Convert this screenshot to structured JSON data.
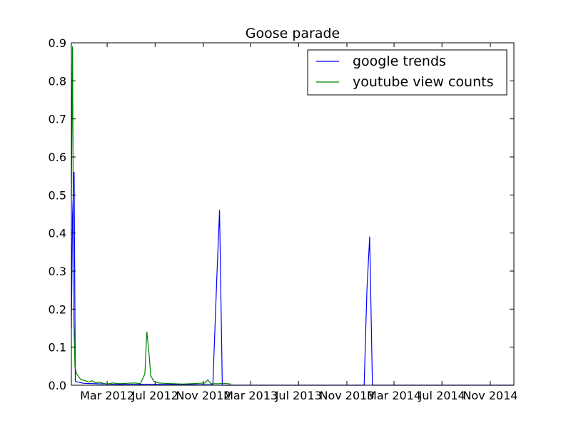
{
  "chart_data": {
    "type": "line",
    "title": "Goose parade",
    "xlabel": "",
    "ylabel": "",
    "x_axis_type": "date",
    "xlim": [
      "2011-12-01",
      "2014-12-31"
    ],
    "ylim": [
      0,
      0.9
    ],
    "x_ticks": [
      {
        "date": "2012-03-01",
        "label": "Mar 2012"
      },
      {
        "date": "2012-07-01",
        "label": "Jul 2012"
      },
      {
        "date": "2012-11-01",
        "label": "Nov 2012"
      },
      {
        "date": "2013-03-01",
        "label": "Mar 2013"
      },
      {
        "date": "2013-07-01",
        "label": "Jul 2013"
      },
      {
        "date": "2013-11-01",
        "label": "Nov 2013"
      },
      {
        "date": "2014-03-01",
        "label": "Mar 2014"
      },
      {
        "date": "2014-07-01",
        "label": "Jul 2014"
      },
      {
        "date": "2014-11-01",
        "label": "Nov 2014"
      }
    ],
    "y_ticks": [
      {
        "value": 0.0,
        "label": "0.0"
      },
      {
        "value": 0.1,
        "label": "0.1"
      },
      {
        "value": 0.2,
        "label": "0.2"
      },
      {
        "value": 0.3,
        "label": "0.3"
      },
      {
        "value": 0.4,
        "label": "0.4"
      },
      {
        "value": 0.5,
        "label": "0.5"
      },
      {
        "value": 0.6,
        "label": "0.6"
      },
      {
        "value": 0.7,
        "label": "0.7"
      },
      {
        "value": 0.8,
        "label": "0.8"
      },
      {
        "value": 0.9,
        "label": "0.9"
      }
    ],
    "grid": false,
    "legend_position": "top-right",
    "series": [
      {
        "name": "google trends",
        "color": "#0000ff",
        "points": [
          {
            "x": "2011-12-01",
            "y": 0.15
          },
          {
            "x": "2011-12-04",
            "y": 0.45
          },
          {
            "x": "2011-12-08",
            "y": 0.56
          },
          {
            "x": "2011-12-11",
            "y": 0.01
          },
          {
            "x": "2012-01-01",
            "y": 0.005
          },
          {
            "x": "2012-04-01",
            "y": 0.002
          },
          {
            "x": "2012-08-01",
            "y": 0.002
          },
          {
            "x": "2012-11-25",
            "y": 0.001
          },
          {
            "x": "2012-12-05",
            "y": 0.28
          },
          {
            "x": "2012-12-12",
            "y": 0.46
          },
          {
            "x": "2012-12-19",
            "y": 0.0
          },
          {
            "x": "2013-06-01",
            "y": 0.0
          },
          {
            "x": "2013-12-15",
            "y": 0.0
          },
          {
            "x": "2013-12-22",
            "y": 0.25
          },
          {
            "x": "2013-12-29",
            "y": 0.39
          },
          {
            "x": "2014-01-05",
            "y": 0.0
          },
          {
            "x": "2014-12-31",
            "y": 0.0
          }
        ]
      },
      {
        "name": "youtube view counts",
        "color": "#008000",
        "points": [
          {
            "x": "2011-12-01",
            "y": 0.5
          },
          {
            "x": "2011-12-04",
            "y": 0.89
          },
          {
            "x": "2011-12-07",
            "y": 0.18
          },
          {
            "x": "2011-12-10",
            "y": 0.05
          },
          {
            "x": "2011-12-14",
            "y": 0.03
          },
          {
            "x": "2011-12-18",
            "y": 0.025
          },
          {
            "x": "2011-12-25",
            "y": 0.015
          },
          {
            "x": "2012-01-05",
            "y": 0.012
          },
          {
            "x": "2012-01-15",
            "y": 0.008
          },
          {
            "x": "2012-01-22",
            "y": 0.012
          },
          {
            "x": "2012-02-01",
            "y": 0.006
          },
          {
            "x": "2012-02-10",
            "y": 0.008
          },
          {
            "x": "2012-02-20",
            "y": 0.005
          },
          {
            "x": "2012-03-01",
            "y": 0.003
          },
          {
            "x": "2012-03-15",
            "y": 0.006
          },
          {
            "x": "2012-04-01",
            "y": 0.004
          },
          {
            "x": "2012-04-20",
            "y": 0.005
          },
          {
            "x": "2012-05-10",
            "y": 0.006
          },
          {
            "x": "2012-05-25",
            "y": 0.004
          },
          {
            "x": "2012-06-05",
            "y": 0.03
          },
          {
            "x": "2012-06-10",
            "y": 0.14
          },
          {
            "x": "2012-06-15",
            "y": 0.09
          },
          {
            "x": "2012-06-20",
            "y": 0.025
          },
          {
            "x": "2012-06-28",
            "y": 0.01
          },
          {
            "x": "2012-07-10",
            "y": 0.006
          },
          {
            "x": "2012-07-25",
            "y": 0.005
          },
          {
            "x": "2012-08-15",
            "y": 0.004
          },
          {
            "x": "2012-09-10",
            "y": 0.003
          },
          {
            "x": "2012-10-01",
            "y": 0.004
          },
          {
            "x": "2012-10-20",
            "y": 0.005
          },
          {
            "x": "2012-11-05",
            "y": 0.006
          },
          {
            "x": "2012-11-12",
            "y": 0.014
          },
          {
            "x": "2012-11-20",
            "y": 0.004
          },
          {
            "x": "2012-12-10",
            "y": 0.004
          },
          {
            "x": "2012-12-25",
            "y": 0.005
          },
          {
            "x": "2013-01-10",
            "y": 0.003
          }
        ]
      }
    ]
  }
}
